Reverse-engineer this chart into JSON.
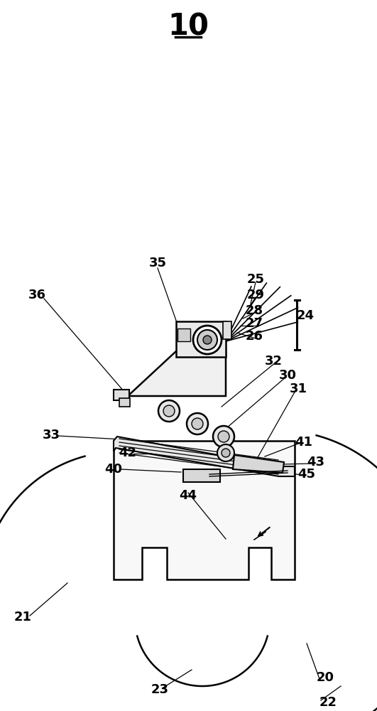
{
  "bg_color": "#ffffff",
  "line_color": "#000000",
  "title": "10",
  "lw_main": 1.8,
  "lw_thin": 1.0,
  "label_fs": 13
}
